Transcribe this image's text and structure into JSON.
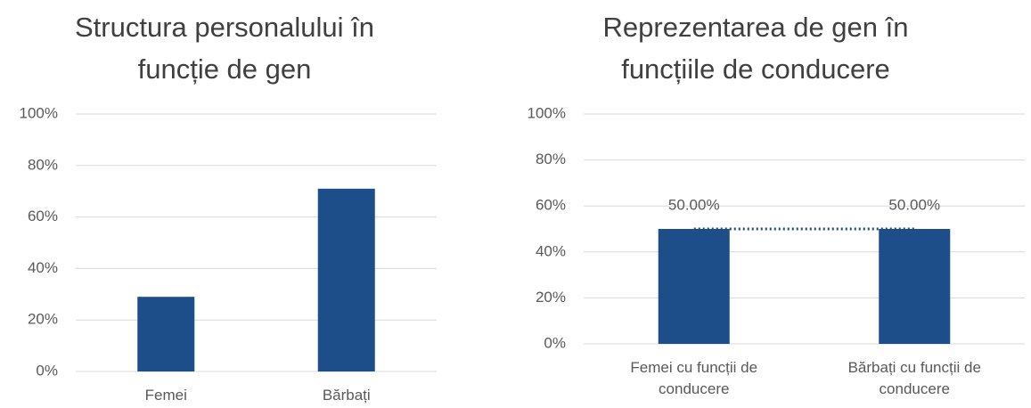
{
  "chart_data": [
    {
      "type": "bar",
      "title": "Structura personalului în funcție de gen",
      "categories": [
        "Femei",
        "Bărbați"
      ],
      "values": [
        29,
        71
      ],
      "color": "#1d4e89",
      "ylim": [
        0,
        100
      ],
      "yticks": [
        {
          "value": 0,
          "label": "0%"
        },
        {
          "value": 20,
          "label": "20%"
        },
        {
          "value": 40,
          "label": "40%"
        },
        {
          "value": 60,
          "label": "60%"
        },
        {
          "value": 80,
          "label": "80%"
        },
        {
          "value": 100,
          "label": "100%"
        }
      ],
      "grid": true
    },
    {
      "type": "bar",
      "title": "Reprezentarea de gen în funcțiile de conducere",
      "categories": [
        "Femei cu funcții de conducere",
        "Bărbați cu funcții de conducere"
      ],
      "values": [
        50,
        50
      ],
      "value_labels": [
        "50.00%",
        "50.00%"
      ],
      "color": "#1d4e89",
      "ylim": [
        0,
        100
      ],
      "yticks": [
        {
          "value": 0,
          "label": "0%"
        },
        {
          "value": 20,
          "label": "20%"
        },
        {
          "value": 40,
          "label": "40%"
        },
        {
          "value": 60,
          "label": "60%"
        },
        {
          "value": 80,
          "label": "80%"
        },
        {
          "value": 100,
          "label": "100%"
        }
      ],
      "grid": true,
      "connector": true
    }
  ]
}
